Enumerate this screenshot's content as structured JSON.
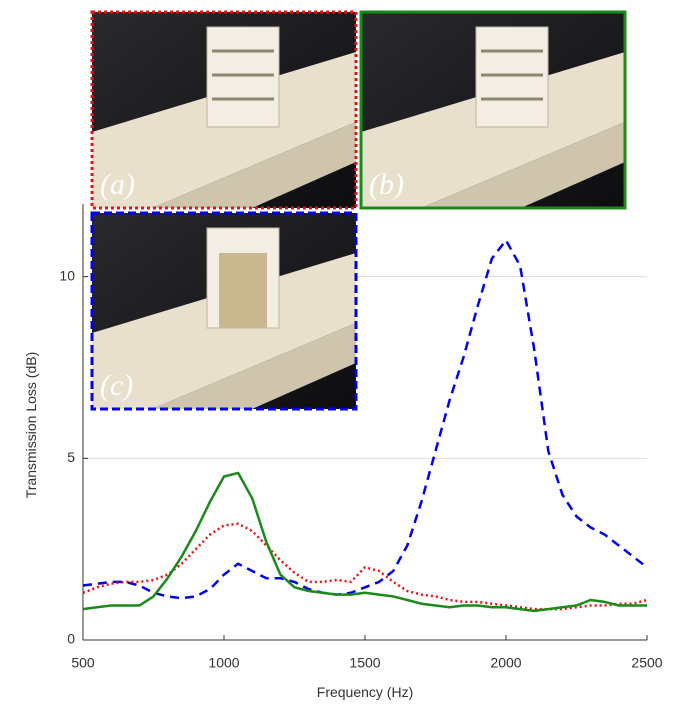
{
  "chart_data": {
    "type": "line",
    "xlabel": "Frequency (Hz)",
    "ylabel": "Transmission Loss (dB)",
    "annotations": [
      "(a)",
      "(b)",
      "(c)"
    ],
    "x": [
      500,
      550,
      600,
      650,
      700,
      750,
      800,
      850,
      900,
      950,
      1000,
      1050,
      1100,
      1150,
      1200,
      1250,
      1300,
      1350,
      1400,
      1450,
      1500,
      1550,
      1600,
      1650,
      1700,
      1750,
      1800,
      1850,
      1900,
      1950,
      2000,
      2050,
      2100,
      2150,
      2200,
      2250,
      2300,
      2350,
      2400,
      2450,
      2500
    ],
    "series": [
      {
        "color": "#0000ee",
        "dash": "dashed",
        "values": [
          1.5,
          1.55,
          1.6,
          1.6,
          1.5,
          1.3,
          1.2,
          1.15,
          1.2,
          1.4,
          1.8,
          2.1,
          1.9,
          1.7,
          1.7,
          1.6,
          1.4,
          1.3,
          1.25,
          1.3,
          1.45,
          1.6,
          1.9,
          2.6,
          3.8,
          5.2,
          6.6,
          7.8,
          9.2,
          10.5,
          11.0,
          10.3,
          8.0,
          5.2,
          4.0,
          3.4,
          3.1,
          2.9,
          2.6,
          2.3,
          2.0
        ]
      },
      {
        "color": "#ee1111",
        "dash": "dotted",
        "values": [
          1.3,
          1.45,
          1.55,
          1.6,
          1.6,
          1.65,
          1.8,
          2.1,
          2.5,
          2.9,
          3.15,
          3.2,
          3.0,
          2.6,
          2.2,
          1.85,
          1.6,
          1.6,
          1.65,
          1.6,
          2.0,
          1.9,
          1.6,
          1.35,
          1.25,
          1.2,
          1.1,
          1.05,
          1.05,
          1.0,
          0.95,
          0.9,
          0.85,
          0.85,
          0.85,
          0.9,
          0.95,
          0.95,
          1.0,
          1.0,
          1.1
        ]
      },
      {
        "color": "#1a8a1a",
        "dash": "solid",
        "values": [
          0.85,
          0.9,
          0.95,
          0.95,
          0.95,
          1.2,
          1.7,
          2.3,
          3.0,
          3.8,
          4.5,
          4.6,
          3.9,
          2.7,
          1.8,
          1.45,
          1.35,
          1.3,
          1.25,
          1.25,
          1.3,
          1.25,
          1.2,
          1.1,
          1.0,
          0.95,
          0.9,
          0.95,
          0.95,
          0.9,
          0.9,
          0.85,
          0.8,
          0.85,
          0.9,
          0.95,
          1.1,
          1.05,
          0.95,
          0.95,
          0.95
        ]
      }
    ],
    "xlim": [
      500,
      2500
    ],
    "xticks": [
      500,
      1000,
      1500,
      2000,
      2500
    ],
    "ylim": [
      0,
      12
    ],
    "yticks": [
      0,
      5,
      10
    ],
    "grid": true
  }
}
